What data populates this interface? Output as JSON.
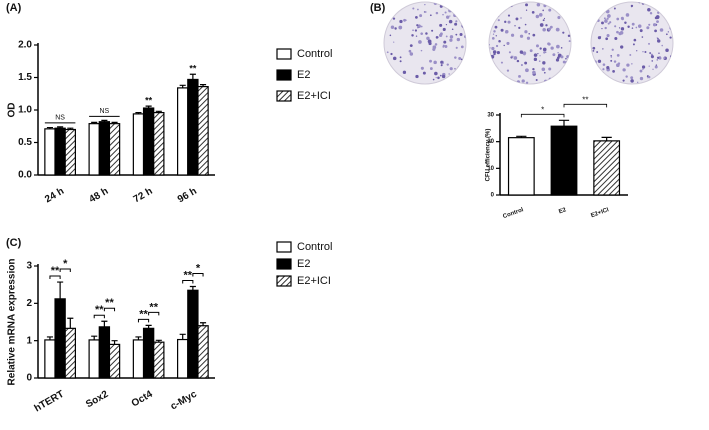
{
  "chart_data": [
    {
      "type": "grouped-bar",
      "panel": "(A)",
      "ylabel": "OD",
      "categories": [
        "24 h",
        "48 h",
        "72 h",
        "96 h"
      ],
      "series": [
        {
          "name": "Control",
          "color": "#ffffff",
          "values": [
            0.71,
            0.79,
            0.94,
            1.34
          ],
          "errors": [
            0.02,
            0.02,
            0.02,
            0.04
          ]
        },
        {
          "name": "E2",
          "color": "#000000",
          "values": [
            0.72,
            0.82,
            1.03,
            1.47
          ],
          "errors": [
            0.02,
            0.02,
            0.03,
            0.08
          ]
        },
        {
          "name": "E2+ICI",
          "color": "#ffffff",
          "hatch": true,
          "values": [
            0.7,
            0.79,
            0.96,
            1.36
          ],
          "errors": [
            0.02,
            0.02,
            0.02,
            0.03
          ]
        }
      ],
      "significance": [
        "NS",
        "NS",
        "**",
        "**"
      ],
      "ylim": [
        0,
        2
      ],
      "yticks": [
        {
          "value": 0,
          "label": "0.0"
        },
        {
          "value": 0.5,
          "label": "0.5"
        },
        {
          "value": 1,
          "label": "1.0"
        },
        {
          "value": 1.5,
          "label": "1.5"
        },
        {
          "value": 2,
          "label": "2.0"
        }
      ]
    },
    {
      "type": "bar",
      "panel": "(B)",
      "ylabel": "CFU efficiency (%)",
      "categories": [
        "Control",
        "E2",
        "E2+ICI"
      ],
      "values": [
        21.5,
        25.8,
        20.3
      ],
      "errors": [
        0.5,
        2.2,
        1.3
      ],
      "colors": [
        "#ffffff",
        "#000000",
        "#ffffff"
      ],
      "hatch": [
        false,
        false,
        true
      ],
      "significance": [
        "*",
        "**"
      ],
      "ylim": [
        0,
        30
      ],
      "yticks": [
        0,
        10,
        20,
        30
      ]
    },
    {
      "type": "grouped-bar",
      "panel": "(C)",
      "ylabel": "Relative mRNA expression",
      "categories": [
        "hTERT",
        "Sox2",
        "Oct4",
        "c-Myc"
      ],
      "series": [
        {
          "name": "Control",
          "color": "#ffffff",
          "values": [
            1.02,
            1.02,
            1.02,
            1.03
          ],
          "errors": [
            0.08,
            0.1,
            0.08,
            0.14
          ]
        },
        {
          "name": "E2",
          "color": "#000000",
          "values": [
            2.12,
            1.37,
            1.33,
            2.35
          ],
          "errors": [
            0.45,
            0.15,
            0.08,
            0.1
          ]
        },
        {
          "name": "E2+ICI",
          "color": "#ffffff",
          "hatch": true,
          "values": [
            1.33,
            0.9,
            0.96,
            1.4
          ],
          "errors": [
            0.27,
            0.1,
            0.05,
            0.08
          ]
        }
      ],
      "significance_vs_control": [
        "**",
        "**",
        "**",
        "**"
      ],
      "significance_vs_e2": [
        "*",
        "**",
        "**",
        "*"
      ],
      "ylim": [
        0,
        3
      ],
      "yticks": [
        0,
        1,
        2,
        3
      ]
    }
  ]
}
